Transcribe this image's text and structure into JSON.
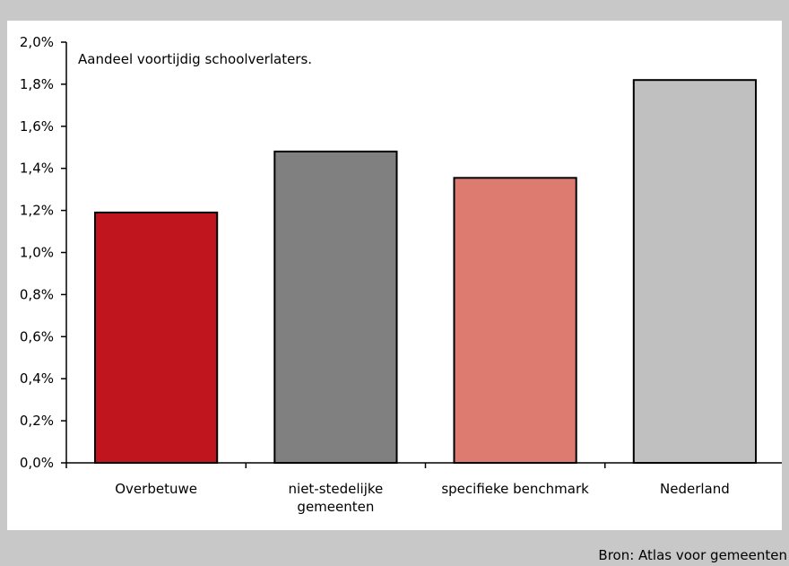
{
  "footer": {
    "source": "Bron: Atlas voor gemeenten"
  },
  "chart_data": {
    "type": "bar",
    "title": "Aandeel voortijdig schoolverlaters.",
    "categories": [
      [
        "Overbetuwe"
      ],
      [
        "niet-stedelijke",
        "gemeenten"
      ],
      [
        "specifieke benchmark"
      ],
      [
        "Nederland"
      ]
    ],
    "values": [
      1.19,
      1.48,
      1.355,
      1.82
    ],
    "colors": [
      "#c0141e",
      "#808080",
      "#de7b70",
      "#c0c0c0"
    ],
    "ylim": [
      0,
      2.0
    ],
    "yticks": [
      "0,0%",
      "0,2%",
      "0,4%",
      "0,6%",
      "0,8%",
      "1,0%",
      "1,2%",
      "1,4%",
      "1,6%",
      "1,8%",
      "2,0%"
    ],
    "grid": false,
    "legend": "none"
  }
}
